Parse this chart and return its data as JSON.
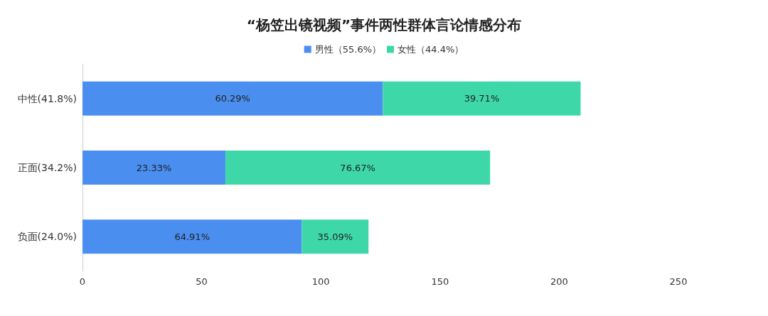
{
  "chart_data": {
    "type": "bar",
    "orientation": "horizontal",
    "stacked": true,
    "title": "“杨笠出镜视频”事件两性群体言论情感分布",
    "categories": [
      "中性(41.8%)",
      "正面(34.2%)",
      "负面(24.0%)"
    ],
    "series": [
      {
        "name": "男性（55.6%）",
        "color": "#4a8ef0",
        "values": [
          126,
          60,
          92
        ]
      },
      {
        "name": "女性（44.4%）",
        "color": "#3ed8a8",
        "values": [
          83,
          111,
          28
        ]
      }
    ],
    "annotations": [
      "60.29%",
      "23.33%",
      "64.91%",
      "39.71%",
      "76.67%",
      "35.09%"
    ],
    "xlim": [
      0,
      250
    ],
    "xticks": [
      0,
      50,
      100,
      150,
      200,
      250
    ],
    "grid": false,
    "legend": "top"
  }
}
